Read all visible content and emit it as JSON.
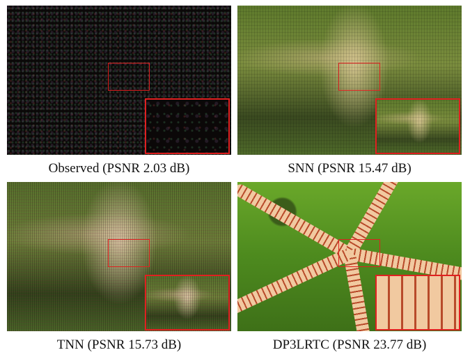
{
  "figure": {
    "panels": [
      {
        "method": "Observed",
        "caption": "Observed (PSNR 2.03 dB)",
        "psnr_db": 2.03
      },
      {
        "method": "SNN",
        "caption": "SNN (PSNR 15.47 dB)",
        "psnr_db": 15.47
      },
      {
        "method": "TNN",
        "caption": "TNN (PSNR 15.73 dB)",
        "psnr_db": 15.73
      },
      {
        "method": "DP3LRTC",
        "caption": "DP3LRTC (PSNR 23.77 dB)",
        "psnr_db": 23.77
      }
    ],
    "highlight_color": "#e02020"
  }
}
